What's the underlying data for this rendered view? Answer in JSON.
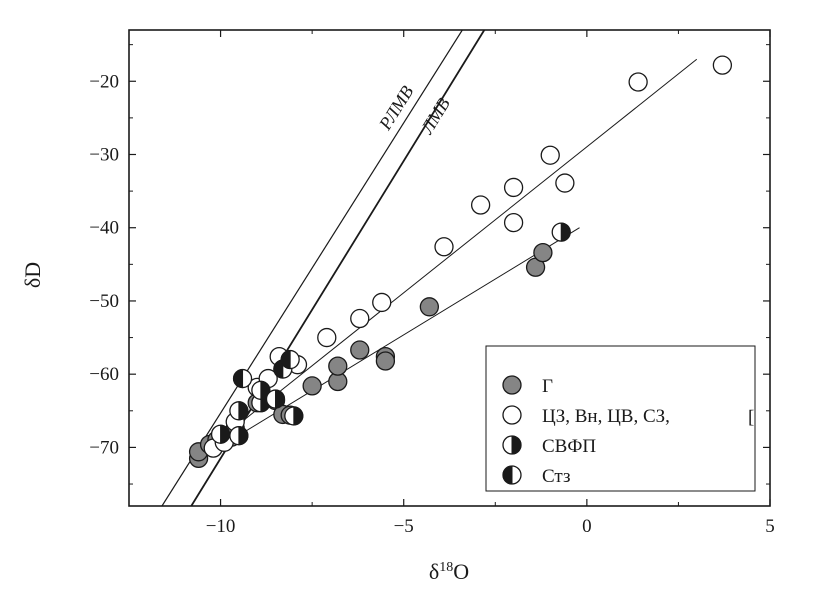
{
  "chart_data": {
    "type": "scatter",
    "xlabel": "δ¹⁸O",
    "xlabel_parts": {
      "base": "δ",
      "sup": "18",
      "rest": "O"
    },
    "ylabel": "δD",
    "xlim": [
      -12.5,
      5
    ],
    "ylim": [
      -78,
      -13
    ],
    "xticks": [
      -10,
      -5,
      0,
      5
    ],
    "xtick_labels": [
      "−10",
      "−5",
      "0",
      "5"
    ],
    "yticks": [
      -70,
      -60,
      -50,
      -40,
      -30,
      -20
    ],
    "ytick_labels": [
      "−70",
      "−60",
      "−50",
      "−40",
      "−30",
      "−20"
    ],
    "grid": false,
    "legend_position": "bottom-right",
    "reference_lines": [
      {
        "label": "РЛМВ",
        "p1": [
          -11.6,
          -78
        ],
        "p2": [
          -3.4,
          -13
        ]
      },
      {
        "label": "ЛМВ",
        "p1": [
          -10.8,
          -78
        ],
        "p2": [
          -2.8,
          -13
        ]
      }
    ],
    "trend_lines": [
      {
        "p1": [
          -10.3,
          -70
        ],
        "p2": [
          3.0,
          -17
        ]
      },
      {
        "p1": [
          -10.7,
          -72
        ],
        "p2": [
          -0.2,
          -40
        ]
      }
    ],
    "series": [
      {
        "name": "Г",
        "marker": "filled",
        "points": [
          [
            -10.6,
            -71.5
          ],
          [
            -10.6,
            -70.6
          ],
          [
            -10.3,
            -69.6
          ],
          [
            -10.1,
            -69.0
          ],
          [
            -9.7,
            -68.6
          ],
          [
            -9.6,
            -67.4
          ],
          [
            -9.0,
            -63.9
          ],
          [
            -8.5,
            -63.6
          ],
          [
            -8.3,
            -65.5
          ],
          [
            -8.1,
            -65.6
          ],
          [
            -7.5,
            -61.6
          ],
          [
            -6.8,
            -61.0
          ],
          [
            -6.8,
            -58.9
          ],
          [
            -6.2,
            -56.7
          ],
          [
            -5.5,
            -57.6
          ],
          [
            -5.5,
            -58.2
          ],
          [
            -4.3,
            -50.8
          ],
          [
            -1.4,
            -45.4
          ],
          [
            -1.2,
            -43.4
          ]
        ]
      },
      {
        "name": "ЦЗ, Вн, ЦВ, СЗ,",
        "marker": "open",
        "points": [
          [
            -10.2,
            -70.1
          ],
          [
            -9.9,
            -69.3
          ],
          [
            -9.6,
            -66.5
          ],
          [
            -9.0,
            -61.8
          ],
          [
            -8.7,
            -60.6
          ],
          [
            -8.4,
            -57.6
          ],
          [
            -7.9,
            -58.7
          ],
          [
            -7.1,
            -55.0
          ],
          [
            -6.2,
            -52.4
          ],
          [
            -5.6,
            -50.2
          ],
          [
            -3.9,
            -42.6
          ],
          [
            -2.9,
            -36.9
          ],
          [
            -2.0,
            -34.5
          ],
          [
            -2.0,
            -39.3
          ],
          [
            -1.0,
            -30.1
          ],
          [
            -0.6,
            -33.9
          ],
          [
            1.4,
            -20.1
          ],
          [
            3.7,
            -17.8
          ]
        ]
      },
      {
        "name": "СВФП",
        "marker": "half-right",
        "points": [
          [
            -10.0,
            -68.2
          ],
          [
            -9.5,
            -65.0
          ],
          [
            -9.5,
            -68.4
          ],
          [
            -8.9,
            -63.9
          ],
          [
            -8.9,
            -62.2
          ],
          [
            -8.5,
            -63.4
          ],
          [
            -8.0,
            -65.7
          ],
          [
            -0.7,
            -40.6
          ]
        ]
      },
      {
        "name": "Стз",
        "marker": "half-left",
        "points": [
          [
            -9.4,
            -60.6
          ],
          [
            -8.3,
            -59.3
          ],
          [
            -8.1,
            -58.0
          ]
        ]
      }
    ],
    "legend_extra_mark": "["
  },
  "colors": {
    "filled_marker": "#858585",
    "open_marker": "#ffffff",
    "ink": "#1a1a1a"
  }
}
